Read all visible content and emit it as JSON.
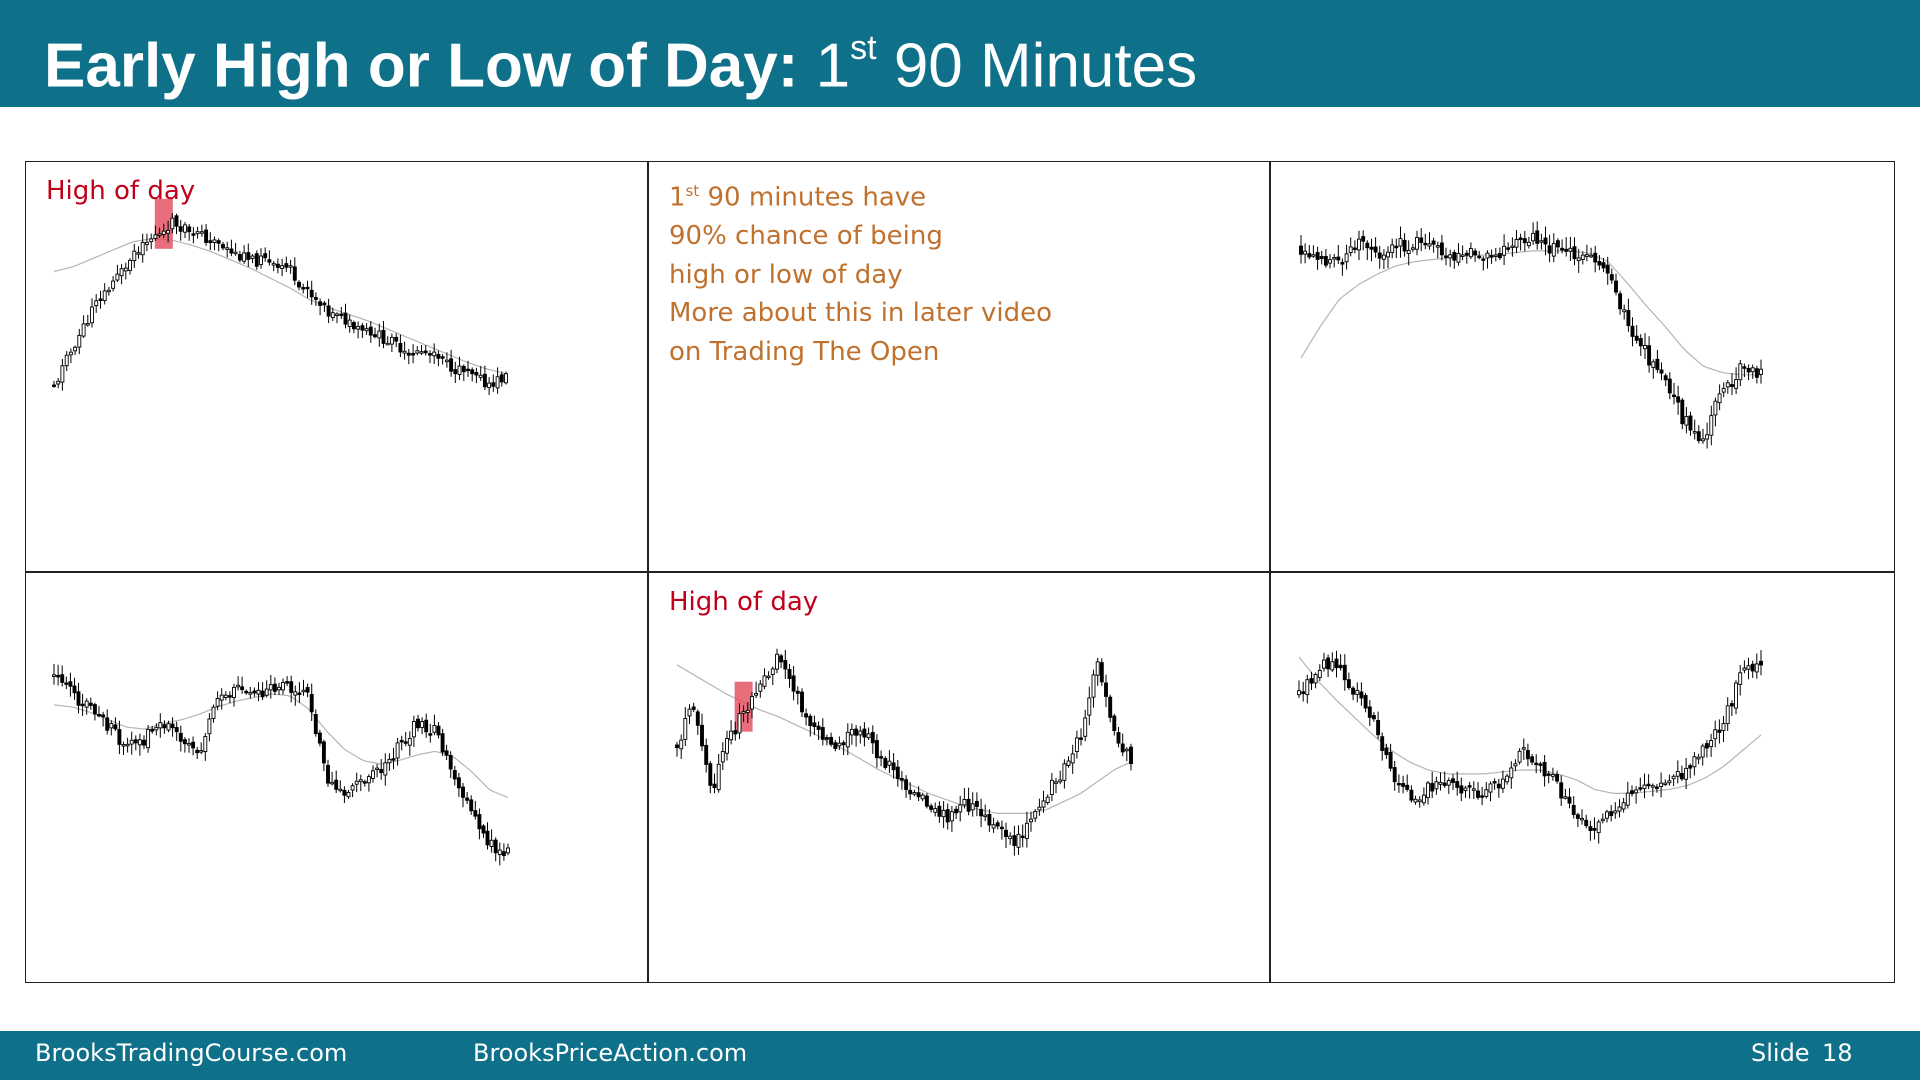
{
  "header": {
    "title_bold": "Early High or Low of Day:",
    "title_number": "1",
    "title_sup": "st",
    "title_rest": "90 Minutes"
  },
  "panels": {
    "top_left_label": "High of day",
    "bottom_middle_label": "High of day",
    "note": {
      "line1_number": "1",
      "line1_sup": "st",
      "line1_rest": "90 minutes have",
      "line2": "90% chance of being",
      "line3": "high or low of day",
      "line4": "More about this in later video",
      "line5": "on Trading The Open"
    }
  },
  "footer": {
    "site1": "BrooksTradingCourse.com",
    "site2": "BrooksPriceAction.com",
    "slide_label": "Slide",
    "slide_number": "18"
  },
  "colors": {
    "brand": "#0e7089",
    "highlight": "#e24a5a",
    "label_red": "#c0001b",
    "note_orange": "#c0712e",
    "candle_dark": "#000000",
    "ema_line": "#b5b5b5"
  },
  "chart_data": [
    {
      "type": "candlestick",
      "panel": "top-left",
      "label": "High of day",
      "close_path": [
        0,
        0.25,
        0.48,
        0.64,
        0.78,
        0.9,
        1.0,
        0.95,
        0.88,
        0.82,
        0.76,
        0.77,
        0.72,
        0.55,
        0.44,
        0.4,
        0.35,
        0.28,
        0.22,
        0.2,
        0.14,
        0.08,
        0.02,
        0.06
      ],
      "ema_path": [
        0.7,
        0.73,
        0.78,
        0.83,
        0.88,
        0.9,
        0.89,
        0.86,
        0.82,
        0.77,
        0.72,
        0.66,
        0.6,
        0.53,
        0.48,
        0.44,
        0.4,
        0.35,
        0.3,
        0.25,
        0.2,
        0.15,
        0.11,
        0.08
      ],
      "highlighted_bar": "high of day (first 90 minutes)"
    },
    {
      "type": "candlestick",
      "panel": "top-right",
      "close_path": [
        0.92,
        0.84,
        0.87,
        0.94,
        0.9,
        0.93,
        0.95,
        0.92,
        0.88,
        0.91,
        0.89,
        0.94,
        0.98,
        0.92,
        0.9,
        0.88,
        0.8,
        0.58,
        0.42,
        0.3,
        0.1,
        0.02,
        0.25,
        0.35,
        0.33
      ],
      "ema_path": [
        0.4,
        0.55,
        0.68,
        0.75,
        0.8,
        0.84,
        0.86,
        0.87,
        0.88,
        0.89,
        0.89,
        0.9,
        0.91,
        0.91,
        0.91,
        0.9,
        0.86,
        0.76,
        0.65,
        0.55,
        0.44,
        0.36,
        0.33,
        0.32,
        0.32
      ]
    },
    {
      "type": "candlestick",
      "panel": "bottom-left",
      "close_path": [
        0.95,
        0.86,
        0.78,
        0.68,
        0.58,
        0.62,
        0.72,
        0.6,
        0.55,
        0.82,
        0.88,
        0.86,
        0.88,
        0.9,
        0.85,
        0.4,
        0.33,
        0.4,
        0.44,
        0.58,
        0.7,
        0.66,
        0.4,
        0.22,
        0.05,
        0.0
      ],
      "ema_path": [
        0.8,
        0.79,
        0.76,
        0.72,
        0.68,
        0.67,
        0.7,
        0.72,
        0.75,
        0.79,
        0.82,
        0.84,
        0.86,
        0.85,
        0.78,
        0.66,
        0.56,
        0.5,
        0.48,
        0.5,
        0.53,
        0.55,
        0.52,
        0.44,
        0.34,
        0.3
      ]
    },
    {
      "type": "candlestick",
      "panel": "bottom-middle",
      "label": "High of day",
      "close_path": [
        0.55,
        0.75,
        0.3,
        0.55,
        0.72,
        0.85,
        0.98,
        0.8,
        0.65,
        0.55,
        0.58,
        0.62,
        0.5,
        0.4,
        0.32,
        0.22,
        0.18,
        0.25,
        0.2,
        0.12,
        0.06,
        0.15,
        0.3,
        0.42,
        0.6,
        0.95,
        0.6,
        0.48
      ],
      "ema_path": [
        0.95,
        0.9,
        0.85,
        0.8,
        0.76,
        0.72,
        0.69,
        0.65,
        0.61,
        0.56,
        0.52,
        0.47,
        0.42,
        0.38,
        0.34,
        0.3,
        0.27,
        0.24,
        0.22,
        0.2,
        0.2,
        0.2,
        0.22,
        0.26,
        0.3,
        0.36,
        0.42,
        0.46
      ],
      "highlighted_bar": "high of day (first 90 minutes)"
    },
    {
      "type": "candlestick",
      "panel": "bottom-right",
      "close_path": [
        0.78,
        0.92,
        0.96,
        0.8,
        0.65,
        0.38,
        0.25,
        0.3,
        0.35,
        0.28,
        0.3,
        0.35,
        0.5,
        0.42,
        0.32,
        0.15,
        0.08,
        0.2,
        0.3,
        0.32,
        0.35,
        0.4,
        0.52,
        0.65,
        0.9,
        0.92
      ],
      "ema_path": [
        0.98,
        0.86,
        0.76,
        0.67,
        0.58,
        0.5,
        0.44,
        0.4,
        0.38,
        0.38,
        0.38,
        0.39,
        0.4,
        0.4,
        0.38,
        0.35,
        0.3,
        0.28,
        0.28,
        0.29,
        0.3,
        0.32,
        0.36,
        0.42,
        0.5,
        0.58
      ]
    }
  ]
}
